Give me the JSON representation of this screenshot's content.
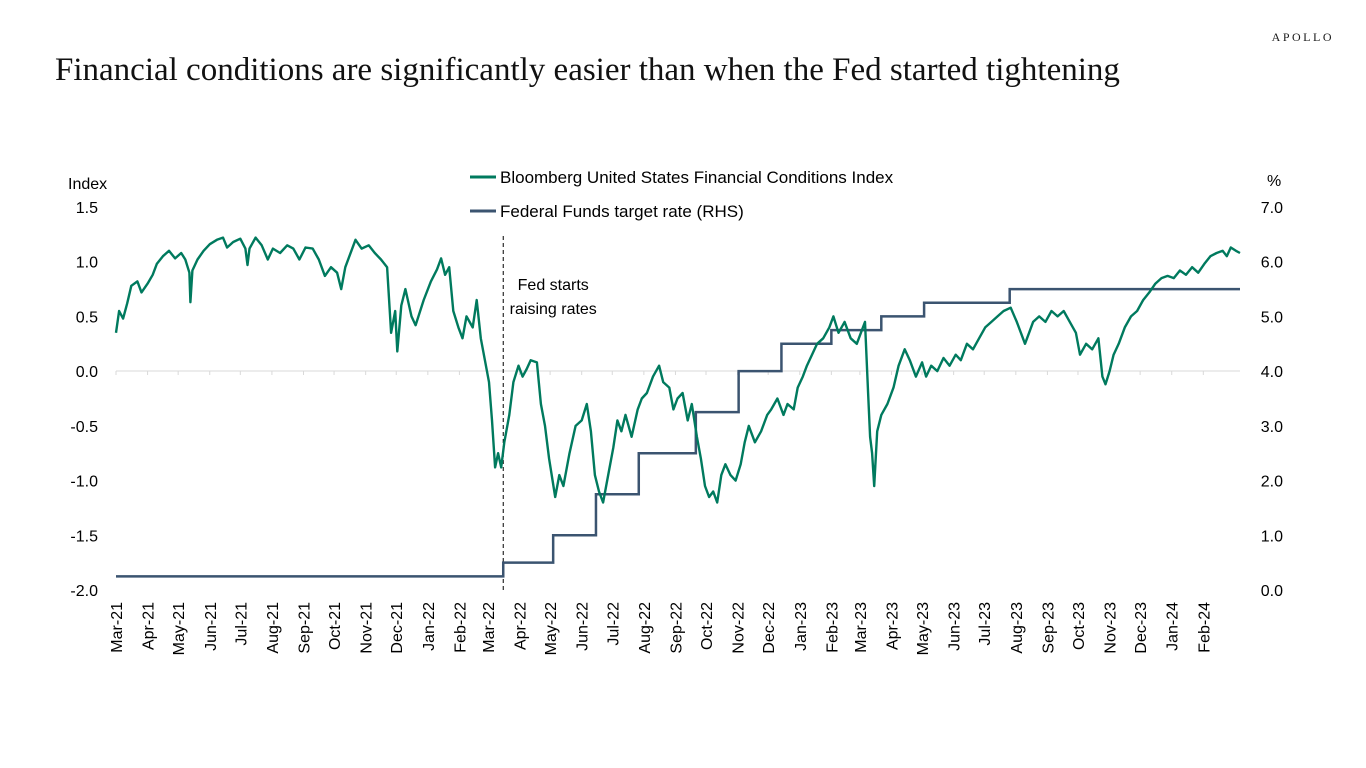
{
  "header": {
    "brand": "APOLLO",
    "title": "Financial conditions are significantly easier than when the Fed started tightening"
  },
  "colors": {
    "fci": "#007A5E",
    "fed": "#3B5470",
    "axis": "#d9d9d9",
    "text": "#000000"
  },
  "chart_data": {
    "type": "line",
    "title": "Financial conditions are significantly easier than when the Fed started tightening",
    "y_left_label": "Index",
    "y_right_label": "%",
    "ylim_left": [
      -2.0,
      1.5
    ],
    "ylim_right": [
      0.0,
      7.0
    ],
    "y_left_ticks": [
      "1.5",
      "1.0",
      "0.5",
      "0.0",
      "-0.5",
      "-1.0",
      "-1.5",
      "-2.0"
    ],
    "y_right_ticks": [
      "7.0",
      "6.0",
      "5.0",
      "4.0",
      "3.0",
      "2.0",
      "1.0",
      "0.0"
    ],
    "x_ticks": [
      "Mar-21",
      "Apr-21",
      "May-21",
      "Jun-21",
      "Jul-21",
      "Aug-21",
      "Sep-21",
      "Oct-21",
      "Nov-21",
      "Dec-21",
      "Jan-22",
      "Feb-22",
      "Mar-22",
      "Apr-22",
      "May-22",
      "Jun-22",
      "Jul-22",
      "Aug-22",
      "Sep-22",
      "Oct-22",
      "Nov-22",
      "Dec-22",
      "Jan-23",
      "Feb-23",
      "Mar-23",
      "Apr-23",
      "May-23",
      "Jun-23",
      "Jul-23",
      "Aug-23",
      "Sep-23",
      "Oct-23",
      "Nov-23",
      "Dec-23",
      "Jan-24",
      "Feb-24"
    ],
    "x_range": [
      "2021-03-01",
      "2024-03-08"
    ],
    "legend_position": "top-center",
    "grid": false,
    "annotation": {
      "date": "2022-03-16",
      "line1": "Fed starts",
      "line2": "raising rates"
    },
    "series": [
      {
        "name": "Bloomberg United States Financial Conditions Index",
        "axis": "left",
        "points": [
          [
            "2021-03-01",
            0.35
          ],
          [
            "2021-03-04",
            0.55
          ],
          [
            "2021-03-08",
            0.48
          ],
          [
            "2021-03-12",
            0.62
          ],
          [
            "2021-03-16",
            0.78
          ],
          [
            "2021-03-22",
            0.82
          ],
          [
            "2021-03-26",
            0.72
          ],
          [
            "2021-04-01",
            0.8
          ],
          [
            "2021-04-06",
            0.88
          ],
          [
            "2021-04-10",
            0.98
          ],
          [
            "2021-04-16",
            1.05
          ],
          [
            "2021-04-22",
            1.1
          ],
          [
            "2021-04-28",
            1.03
          ],
          [
            "2021-05-04",
            1.08
          ],
          [
            "2021-05-08",
            1.02
          ],
          [
            "2021-05-12",
            0.9
          ],
          [
            "2021-05-13",
            0.63
          ],
          [
            "2021-05-15",
            0.92
          ],
          [
            "2021-05-20",
            1.02
          ],
          [
            "2021-05-26",
            1.1
          ],
          [
            "2021-06-01",
            1.16
          ],
          [
            "2021-06-08",
            1.2
          ],
          [
            "2021-06-14",
            1.22
          ],
          [
            "2021-06-18",
            1.13
          ],
          [
            "2021-06-24",
            1.18
          ],
          [
            "2021-07-01",
            1.21
          ],
          [
            "2021-07-06",
            1.12
          ],
          [
            "2021-07-08",
            0.97
          ],
          [
            "2021-07-10",
            1.12
          ],
          [
            "2021-07-16",
            1.22
          ],
          [
            "2021-07-22",
            1.15
          ],
          [
            "2021-07-28",
            1.02
          ],
          [
            "2021-08-02",
            1.12
          ],
          [
            "2021-08-09",
            1.08
          ],
          [
            "2021-08-16",
            1.15
          ],
          [
            "2021-08-22",
            1.12
          ],
          [
            "2021-08-28",
            1.02
          ],
          [
            "2021-09-03",
            1.13
          ],
          [
            "2021-09-10",
            1.12
          ],
          [
            "2021-09-16",
            1.02
          ],
          [
            "2021-09-22",
            0.87
          ],
          [
            "2021-09-28",
            0.95
          ],
          [
            "2021-10-04",
            0.9
          ],
          [
            "2021-10-08",
            0.75
          ],
          [
            "2021-10-12",
            0.95
          ],
          [
            "2021-10-18",
            1.1
          ],
          [
            "2021-10-22",
            1.2
          ],
          [
            "2021-10-28",
            1.12
          ],
          [
            "2021-11-04",
            1.15
          ],
          [
            "2021-11-10",
            1.08
          ],
          [
            "2021-11-16",
            1.02
          ],
          [
            "2021-11-22",
            0.95
          ],
          [
            "2021-11-26",
            0.35
          ],
          [
            "2021-11-30",
            0.55
          ],
          [
            "2021-12-02",
            0.18
          ],
          [
            "2021-12-06",
            0.6
          ],
          [
            "2021-12-10",
            0.75
          ],
          [
            "2021-12-16",
            0.5
          ],
          [
            "2021-12-20",
            0.42
          ],
          [
            "2021-12-28",
            0.65
          ],
          [
            "2022-01-04",
            0.82
          ],
          [
            "2022-01-10",
            0.93
          ],
          [
            "2022-01-14",
            1.03
          ],
          [
            "2022-01-18",
            0.88
          ],
          [
            "2022-01-22",
            0.95
          ],
          [
            "2022-01-26",
            0.55
          ],
          [
            "2022-01-31",
            0.4
          ],
          [
            "2022-02-04",
            0.3
          ],
          [
            "2022-02-08",
            0.5
          ],
          [
            "2022-02-14",
            0.4
          ],
          [
            "2022-02-18",
            0.65
          ],
          [
            "2022-02-22",
            0.3
          ],
          [
            "2022-02-26",
            0.1
          ],
          [
            "2022-03-02",
            -0.1
          ],
          [
            "2022-03-05",
            -0.45
          ],
          [
            "2022-03-08",
            -0.88
          ],
          [
            "2022-03-11",
            -0.75
          ],
          [
            "2022-03-14",
            -0.88
          ],
          [
            "2022-03-17",
            -0.65
          ],
          [
            "2022-03-22",
            -0.4
          ],
          [
            "2022-03-26",
            -0.1
          ],
          [
            "2022-03-31",
            0.05
          ],
          [
            "2022-04-04",
            -0.05
          ],
          [
            "2022-04-08",
            0.02
          ],
          [
            "2022-04-12",
            0.1
          ],
          [
            "2022-04-18",
            0.08
          ],
          [
            "2022-04-22",
            -0.3
          ],
          [
            "2022-04-26",
            -0.5
          ],
          [
            "2022-04-30",
            -0.8
          ],
          [
            "2022-05-06",
            -1.15
          ],
          [
            "2022-05-10",
            -0.95
          ],
          [
            "2022-05-14",
            -1.05
          ],
          [
            "2022-05-20",
            -0.75
          ],
          [
            "2022-05-26",
            -0.5
          ],
          [
            "2022-06-01",
            -0.45
          ],
          [
            "2022-06-06",
            -0.3
          ],
          [
            "2022-06-10",
            -0.55
          ],
          [
            "2022-06-14",
            -0.95
          ],
          [
            "2022-06-18",
            -1.1
          ],
          [
            "2022-06-22",
            -1.2
          ],
          [
            "2022-06-28",
            -0.9
          ],
          [
            "2022-07-02",
            -0.7
          ],
          [
            "2022-07-06",
            -0.45
          ],
          [
            "2022-07-10",
            -0.55
          ],
          [
            "2022-07-14",
            -0.4
          ],
          [
            "2022-07-20",
            -0.6
          ],
          [
            "2022-07-26",
            -0.35
          ],
          [
            "2022-07-30",
            -0.25
          ],
          [
            "2022-08-04",
            -0.2
          ],
          [
            "2022-08-10",
            -0.05
          ],
          [
            "2022-08-16",
            0.05
          ],
          [
            "2022-08-20",
            -0.1
          ],
          [
            "2022-08-26",
            -0.15
          ],
          [
            "2022-08-30",
            -0.35
          ],
          [
            "2022-09-03",
            -0.25
          ],
          [
            "2022-09-08",
            -0.2
          ],
          [
            "2022-09-13",
            -0.45
          ],
          [
            "2022-09-17",
            -0.3
          ],
          [
            "2022-09-22",
            -0.6
          ],
          [
            "2022-09-26",
            -0.8
          ],
          [
            "2022-09-30",
            -1.05
          ],
          [
            "2022-10-04",
            -1.15
          ],
          [
            "2022-10-08",
            -1.1
          ],
          [
            "2022-10-12",
            -1.2
          ],
          [
            "2022-10-16",
            -0.95
          ],
          [
            "2022-10-20",
            -0.85
          ],
          [
            "2022-10-25",
            -0.95
          ],
          [
            "2022-10-30",
            -1.0
          ],
          [
            "2022-11-04",
            -0.85
          ],
          [
            "2022-11-08",
            -0.65
          ],
          [
            "2022-11-12",
            -0.5
          ],
          [
            "2022-11-18",
            -0.65
          ],
          [
            "2022-11-24",
            -0.55
          ],
          [
            "2022-11-30",
            -0.4
          ],
          [
            "2022-12-04",
            -0.35
          ],
          [
            "2022-12-10",
            -0.25
          ],
          [
            "2022-12-16",
            -0.4
          ],
          [
            "2022-12-20",
            -0.3
          ],
          [
            "2022-12-26",
            -0.35
          ],
          [
            "2022-12-30",
            -0.15
          ],
          [
            "2023-01-04",
            -0.05
          ],
          [
            "2023-01-08",
            0.05
          ],
          [
            "2023-01-13",
            0.15
          ],
          [
            "2023-01-18",
            0.25
          ],
          [
            "2023-01-24",
            0.3
          ],
          [
            "2023-01-30",
            0.4
          ],
          [
            "2023-02-03",
            0.5
          ],
          [
            "2023-02-08",
            0.35
          ],
          [
            "2023-02-14",
            0.45
          ],
          [
            "2023-02-20",
            0.3
          ],
          [
            "2023-02-26",
            0.25
          ],
          [
            "2023-03-02",
            0.35
          ],
          [
            "2023-03-06",
            0.45
          ],
          [
            "2023-03-09",
            -0.2
          ],
          [
            "2023-03-11",
            -0.6
          ],
          [
            "2023-03-13",
            -0.75
          ],
          [
            "2023-03-15",
            -1.05
          ],
          [
            "2023-03-18",
            -0.55
          ],
          [
            "2023-03-22",
            -0.4
          ],
          [
            "2023-03-28",
            -0.3
          ],
          [
            "2023-04-03",
            -0.15
          ],
          [
            "2023-04-08",
            0.05
          ],
          [
            "2023-04-14",
            0.2
          ],
          [
            "2023-04-19",
            0.1
          ],
          [
            "2023-04-25",
            -0.05
          ],
          [
            "2023-05-01",
            0.08
          ],
          [
            "2023-05-05",
            -0.05
          ],
          [
            "2023-05-10",
            0.05
          ],
          [
            "2023-05-16",
            0.0
          ],
          [
            "2023-05-22",
            0.12
          ],
          [
            "2023-05-28",
            0.05
          ],
          [
            "2023-06-03",
            0.15
          ],
          [
            "2023-06-08",
            0.1
          ],
          [
            "2023-06-14",
            0.25
          ],
          [
            "2023-06-20",
            0.2
          ],
          [
            "2023-06-26",
            0.3
          ],
          [
            "2023-07-02",
            0.4
          ],
          [
            "2023-07-08",
            0.45
          ],
          [
            "2023-07-14",
            0.5
          ],
          [
            "2023-07-20",
            0.55
          ],
          [
            "2023-07-27",
            0.58
          ],
          [
            "2023-08-02",
            0.45
          ],
          [
            "2023-08-06",
            0.35
          ],
          [
            "2023-08-10",
            0.25
          ],
          [
            "2023-08-14",
            0.35
          ],
          [
            "2023-08-18",
            0.45
          ],
          [
            "2023-08-24",
            0.5
          ],
          [
            "2023-08-30",
            0.45
          ],
          [
            "2023-09-05",
            0.55
          ],
          [
            "2023-09-11",
            0.5
          ],
          [
            "2023-09-17",
            0.55
          ],
          [
            "2023-09-23",
            0.45
          ],
          [
            "2023-09-29",
            0.35
          ],
          [
            "2023-10-03",
            0.15
          ],
          [
            "2023-10-09",
            0.25
          ],
          [
            "2023-10-15",
            0.2
          ],
          [
            "2023-10-21",
            0.3
          ],
          [
            "2023-10-25",
            -0.05
          ],
          [
            "2023-10-28",
            -0.12
          ],
          [
            "2023-11-01",
            0.0
          ],
          [
            "2023-11-05",
            0.15
          ],
          [
            "2023-11-10",
            0.25
          ],
          [
            "2023-11-16",
            0.4
          ],
          [
            "2023-11-22",
            0.5
          ],
          [
            "2023-11-28",
            0.55
          ],
          [
            "2023-12-04",
            0.65
          ],
          [
            "2023-12-10",
            0.72
          ],
          [
            "2023-12-16",
            0.8
          ],
          [
            "2023-12-22",
            0.85
          ],
          [
            "2023-12-28",
            0.87
          ],
          [
            "2024-01-03",
            0.85
          ],
          [
            "2024-01-09",
            0.92
          ],
          [
            "2024-01-15",
            0.88
          ],
          [
            "2024-01-21",
            0.95
          ],
          [
            "2024-01-27",
            0.9
          ],
          [
            "2024-02-02",
            0.98
          ],
          [
            "2024-02-08",
            1.05
          ],
          [
            "2024-02-14",
            1.08
          ],
          [
            "2024-02-20",
            1.1
          ],
          [
            "2024-02-24",
            1.05
          ],
          [
            "2024-02-28",
            1.13
          ],
          [
            "2024-03-04",
            1.1
          ],
          [
            "2024-03-08",
            1.08
          ]
        ]
      },
      {
        "name": "Federal Funds target rate (RHS)",
        "axis": "right",
        "step": true,
        "points": [
          [
            "2021-03-01",
            0.25
          ],
          [
            "2022-03-16",
            0.5
          ],
          [
            "2022-05-04",
            1.0
          ],
          [
            "2022-06-15",
            1.75
          ],
          [
            "2022-07-27",
            2.5
          ],
          [
            "2022-09-21",
            3.25
          ],
          [
            "2022-11-02",
            4.0
          ],
          [
            "2022-12-14",
            4.5
          ],
          [
            "2023-02-01",
            4.75
          ],
          [
            "2023-03-22",
            5.0
          ],
          [
            "2023-05-03",
            5.25
          ],
          [
            "2023-07-26",
            5.5
          ],
          [
            "2024-03-08",
            5.5
          ]
        ]
      }
    ]
  }
}
